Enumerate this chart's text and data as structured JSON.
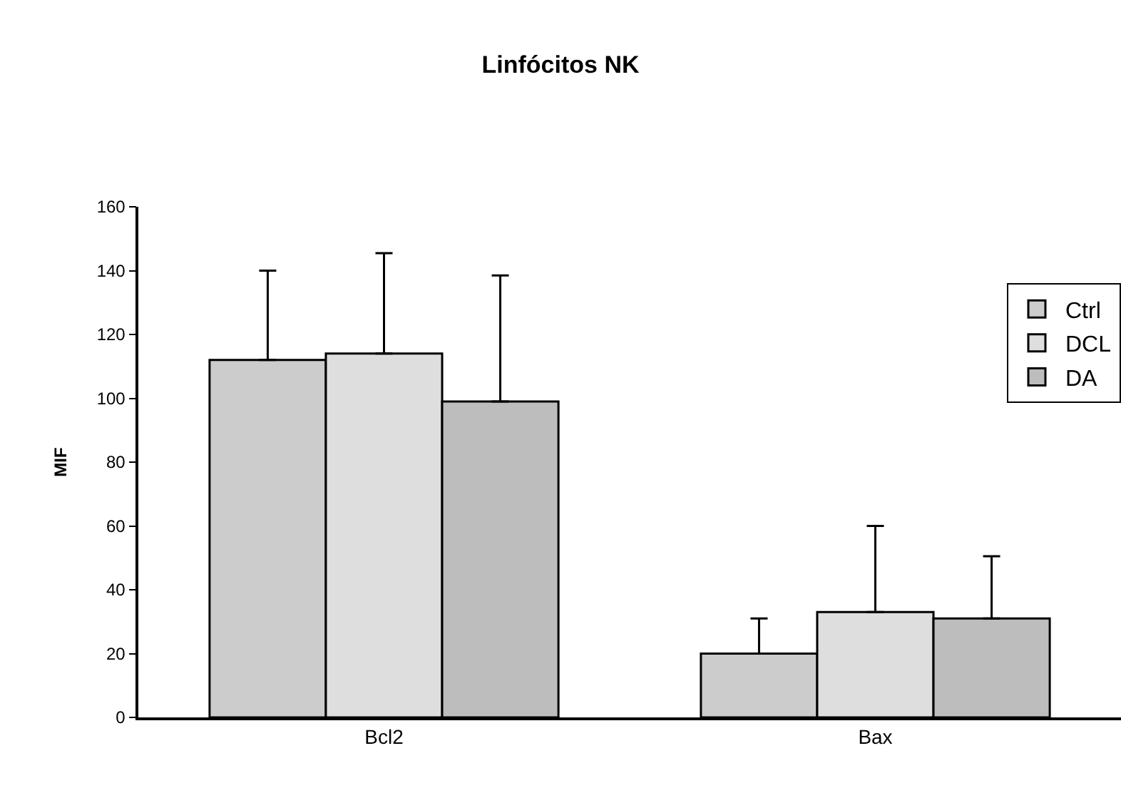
{
  "chart_data": {
    "type": "bar",
    "title": "Linfócitos NK",
    "ylabel": "MIF",
    "categories": [
      "Bcl2",
      "Bax"
    ],
    "series": [
      {
        "name": "Ctrl",
        "color": "#cccccc",
        "values": [
          112,
          20
        ],
        "errors": [
          [
            112,
            140
          ],
          [
            20,
            31
          ]
        ]
      },
      {
        "name": "DCL",
        "color": "#dedede",
        "values": [
          114,
          33
        ],
        "errors": [
          [
            114,
            145.5
          ],
          [
            33,
            60
          ]
        ]
      },
      {
        "name": "DA",
        "color": "#bdbdbd",
        "values": [
          99,
          31
        ],
        "errors": [
          [
            99,
            138.5
          ],
          [
            31,
            50.5
          ]
        ]
      }
    ],
    "ylim": [
      0,
      160
    ],
    "yticks": [
      0,
      20,
      40,
      60,
      80,
      100,
      120,
      140,
      160
    ],
    "grid": false,
    "legend": "top right"
  }
}
